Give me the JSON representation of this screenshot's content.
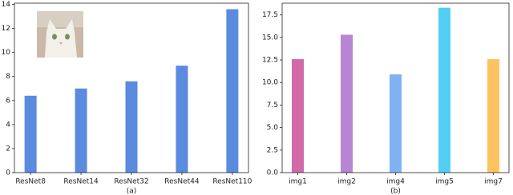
{
  "chart_data": [
    {
      "type": "bar",
      "categories": [
        "ResNet8",
        "ResNet14",
        "ResNet32",
        "ResNet44",
        "ResNet110"
      ],
      "values": [
        6.4,
        7.0,
        7.6,
        8.9,
        13.6
      ],
      "color": "#5b8bde",
      "ylim": [
        0,
        14.1
      ],
      "yticks": [
        0,
        2,
        4,
        6,
        8,
        10,
        12,
        14
      ],
      "xlabel": "(a)"
    },
    {
      "type": "bar",
      "categories": [
        "img1",
        "img2",
        "img4",
        "img5",
        "img7"
      ],
      "values": [
        12.6,
        15.3,
        10.9,
        18.3,
        12.6
      ],
      "colors": [
        "#d16aa9",
        "#b884d3",
        "#7fb2f4",
        "#52cff3",
        "#fec35f"
      ],
      "ylim": [
        0,
        18.8
      ],
      "yticks": [
        {
          "value": 0,
          "label": "0.0"
        },
        2.5,
        {
          "value": 5,
          "label": "5.0"
        },
        7.5,
        {
          "value": 10,
          "label": "10.0"
        },
        12.5,
        {
          "value": 15,
          "label": "15.0"
        },
        17.5
      ],
      "xlabel": "(b)"
    }
  ]
}
